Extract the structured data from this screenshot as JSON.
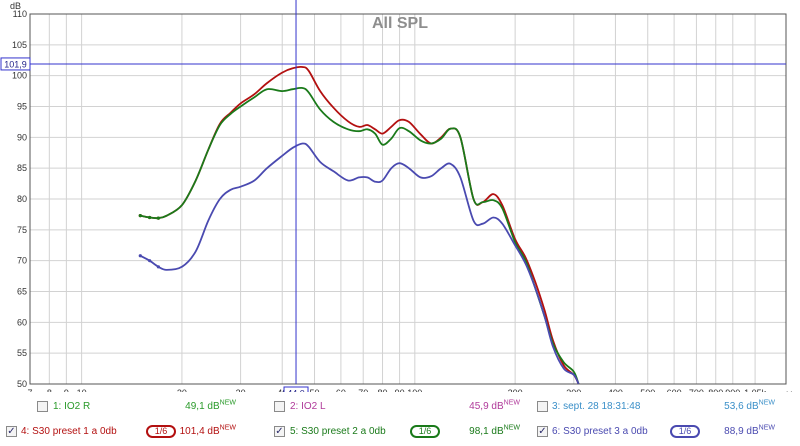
{
  "chart_data": {
    "type": "line",
    "title": "All SPL",
    "ylabel": "dB",
    "xlabel": "Hz",
    "x_scale": "log",
    "xlim": [
      7,
      1300
    ],
    "ylim": [
      50,
      110
    ],
    "y_ticks": [
      "50",
      "55",
      "60",
      "65",
      "70",
      "75",
      "80",
      "85",
      "90",
      "95",
      "100",
      "105",
      "110"
    ],
    "x_ticks": [
      {
        "v": 7,
        "t": "7"
      },
      {
        "v": 8,
        "t": "8"
      },
      {
        "v": 9,
        "t": "9"
      },
      {
        "v": 10,
        "t": "10"
      },
      {
        "v": 20,
        "t": "20"
      },
      {
        "v": 30,
        "t": "30"
      },
      {
        "v": 40,
        "t": "40"
      },
      {
        "v": 50,
        "t": "50"
      },
      {
        "v": 60,
        "t": "60"
      },
      {
        "v": 70,
        "t": "70"
      },
      {
        "v": 80,
        "t": "80"
      },
      {
        "v": 90,
        "t": "90"
      },
      {
        "v": 100,
        "t": "100"
      },
      {
        "v": 200,
        "t": "200"
      },
      {
        "v": 300,
        "t": "300"
      },
      {
        "v": 400,
        "t": "400"
      },
      {
        "v": 500,
        "t": "500"
      },
      {
        "v": 600,
        "t": "600"
      },
      {
        "v": 700,
        "t": "700"
      },
      {
        "v": 800,
        "t": "800"
      },
      {
        "v": 900,
        "t": "900"
      },
      {
        "v": 1050,
        "t": "1,05k"
      }
    ],
    "cursor": {
      "x": 44.0,
      "y": 101.9,
      "x_label": "44,0",
      "y_label": "101,9"
    },
    "grid": true,
    "series": [
      {
        "name": "4: S30 preset 1 a 0db",
        "color": "#b31010",
        "x": [
          15,
          16,
          17,
          18,
          20,
          22,
          24,
          26,
          28,
          30,
          33,
          36,
          40,
          43,
          46,
          48,
          52,
          57,
          63,
          68,
          72,
          76,
          80,
          85,
          90,
          96,
          104,
          112,
          120,
          128,
          137,
          150,
          160,
          172,
          183,
          200,
          215,
          230,
          245,
          260,
          280,
          300,
          310
        ],
        "y": [
          77.3,
          77.0,
          76.9,
          77.3,
          79.0,
          83.0,
          88.0,
          92.2,
          94.0,
          95.5,
          97.0,
          98.8,
          100.5,
          101.2,
          101.4,
          100.8,
          97.5,
          94.8,
          92.6,
          91.7,
          92.0,
          91.3,
          90.6,
          91.7,
          92.8,
          92.5,
          90.5,
          89.0,
          90.0,
          91.4,
          90.0,
          80.0,
          79.5,
          80.8,
          79.0,
          73.5,
          70.5,
          66.5,
          62.0,
          57.0,
          53.0,
          51.5,
          50.0
        ]
      },
      {
        "name": "5: S30 preset 2 a 0db",
        "color": "#1a7a1a",
        "x": [
          15,
          16,
          17,
          18,
          20,
          22,
          24,
          26,
          28,
          30,
          33,
          36,
          40,
          43,
          46,
          48,
          52,
          57,
          63,
          68,
          72,
          76,
          80,
          85,
          90,
          96,
          104,
          112,
          120,
          128,
          137,
          150,
          160,
          172,
          183,
          200,
          215,
          230,
          245,
          260,
          280,
          300,
          310
        ],
        "y": [
          77.3,
          77.0,
          76.9,
          77.3,
          79.0,
          83.0,
          88.0,
          92.0,
          93.8,
          95.0,
          96.5,
          97.8,
          97.5,
          97.8,
          98.0,
          97.3,
          94.5,
          92.5,
          91.3,
          91.0,
          91.3,
          90.6,
          88.8,
          89.8,
          91.5,
          91.0,
          89.5,
          89.0,
          89.8,
          91.4,
          90.0,
          80.0,
          79.5,
          79.8,
          78.5,
          73.0,
          70.0,
          65.5,
          61.0,
          56.5,
          53.5,
          52.0,
          50.0
        ]
      },
      {
        "name": "6: S30 preset 3 a 0db",
        "color": "#4a4ab0",
        "x": [
          15,
          16,
          17,
          18,
          20,
          22,
          24,
          26,
          28,
          30,
          33,
          36,
          40,
          43,
          46,
          48,
          52,
          57,
          63,
          68,
          72,
          76,
          80,
          85,
          90,
          96,
          104,
          112,
          120,
          128,
          137,
          150,
          160,
          172,
          183,
          200,
          215,
          230,
          245,
          260,
          280,
          300,
          310
        ],
        "y": [
          70.8,
          70.0,
          69.0,
          68.5,
          69.0,
          71.5,
          76.5,
          80.0,
          81.5,
          82.0,
          83.0,
          85.0,
          87.0,
          88.3,
          89.0,
          88.5,
          86.0,
          84.5,
          83.0,
          83.5,
          83.5,
          82.8,
          83.0,
          85.0,
          85.8,
          85.0,
          83.5,
          83.7,
          85.0,
          85.7,
          83.5,
          76.5,
          76.0,
          77.0,
          76.0,
          72.5,
          69.5,
          65.5,
          61.0,
          56.0,
          52.5,
          51.5,
          50.0
        ]
      }
    ]
  },
  "legend": {
    "row1": [
      {
        "check": "",
        "label": "1: IO2 R",
        "value": "49,1 dB",
        "new": "NEW",
        "color": "#2a9a2a"
      },
      {
        "check": "",
        "label": "2: IO2 L",
        "value": "45,9 dB",
        "new": "NEW",
        "color": "#b03a9a"
      },
      {
        "check": "",
        "label": "3: sept. 28 18:31:48",
        "value": "53,6 dB",
        "new": "NEW",
        "color": "#3a8fc8"
      }
    ],
    "row2": [
      {
        "check": "✓",
        "label": "4: S30 preset 1 a 0db",
        "smoothing": "1/6",
        "value": "101,4 dB",
        "new": "NEW",
        "color": "#b31010"
      },
      {
        "check": "✓",
        "label": "5: S30 preset 2 a 0db",
        "smoothing": "1/6",
        "value": "98,1 dB",
        "new": "NEW",
        "color": "#1a7a1a"
      },
      {
        "check": "✓",
        "label": "6: S30 preset 3 a 0db",
        "smoothing": "1/6",
        "value": "88,9 dB",
        "new": "NEW",
        "color": "#4a4ab0"
      }
    ]
  }
}
